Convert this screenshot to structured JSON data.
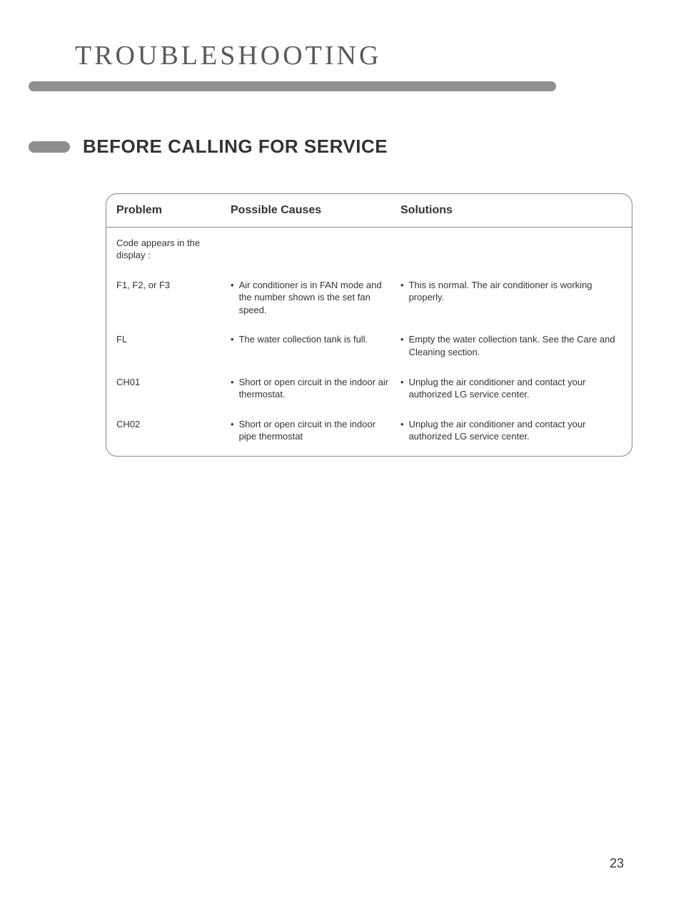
{
  "page_title": "TROUBLESHOOTING",
  "section_heading": "BEFORE CALLING FOR SERVICE",
  "table": {
    "columns": {
      "problem": "Problem",
      "causes": "Possible Causes",
      "solutions": "Solutions"
    },
    "intro_problem": "Code appears in the display :",
    "rows": [
      {
        "problem": "F1, F2, or F3",
        "cause": "Air conditioner is in FAN mode and the number shown is the set fan speed.",
        "solution": "This is normal. The air conditioner is working properly."
      },
      {
        "problem": "FL",
        "cause": "The water collection tank is full.",
        "solution": "Empty the water collection tank. See the Care and Cleaning section."
      },
      {
        "problem": "CH01",
        "cause": "Short or open circuit in the indoor air thermostat.",
        "solution": "Unplug the air conditioner and contact your authorized LG service center."
      },
      {
        "problem": "CH02",
        "cause": "Short or open circuit in the indoor pipe thermostat",
        "solution": "Unplug the air conditioner and contact your authorized LG service center."
      }
    ]
  },
  "page_number": "23",
  "colors": {
    "bar": "#8f8f8f",
    "text": "#333333",
    "title_text": "#5a5a5a",
    "border": "#888888",
    "background": "#ffffff"
  }
}
